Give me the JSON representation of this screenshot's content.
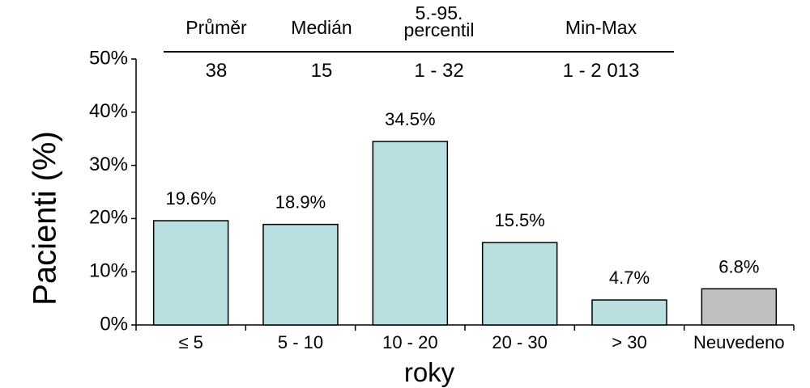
{
  "stats_table": {
    "columns": [
      {
        "header": "Průměr",
        "value": "38"
      },
      {
        "header": "Medián",
        "value": "15"
      },
      {
        "header": "5.-95.\npercentil",
        "value": "1 - 32"
      },
      {
        "header": "Min-Max",
        "value": "1 - 2 013"
      }
    ]
  },
  "chart_data": {
    "type": "bar",
    "categories": [
      "≤ 5",
      "5 - 10",
      "10 - 20",
      "20 - 30",
      "> 30",
      "Neuvedeno"
    ],
    "values": [
      19.6,
      18.9,
      34.5,
      15.5,
      4.7,
      6.8
    ],
    "value_labels": [
      "19.6%",
      "18.9%",
      "34.5%",
      "15.5%",
      "4.7%",
      "6.8%"
    ],
    "bar_colors": [
      "#b9dfe1",
      "#b9dfe1",
      "#b9dfe1",
      "#b9dfe1",
      "#b9dfe1",
      "#c0c0c0"
    ],
    "ylabel": "Pacienti (%)",
    "xlabel": "roky",
    "ylim": [
      0,
      50
    ],
    "yticks": [
      0,
      10,
      20,
      30,
      40,
      50
    ],
    "ytick_labels": [
      "0%",
      "10%",
      "20%",
      "30%",
      "40%",
      "50%"
    ],
    "grid": false
  }
}
